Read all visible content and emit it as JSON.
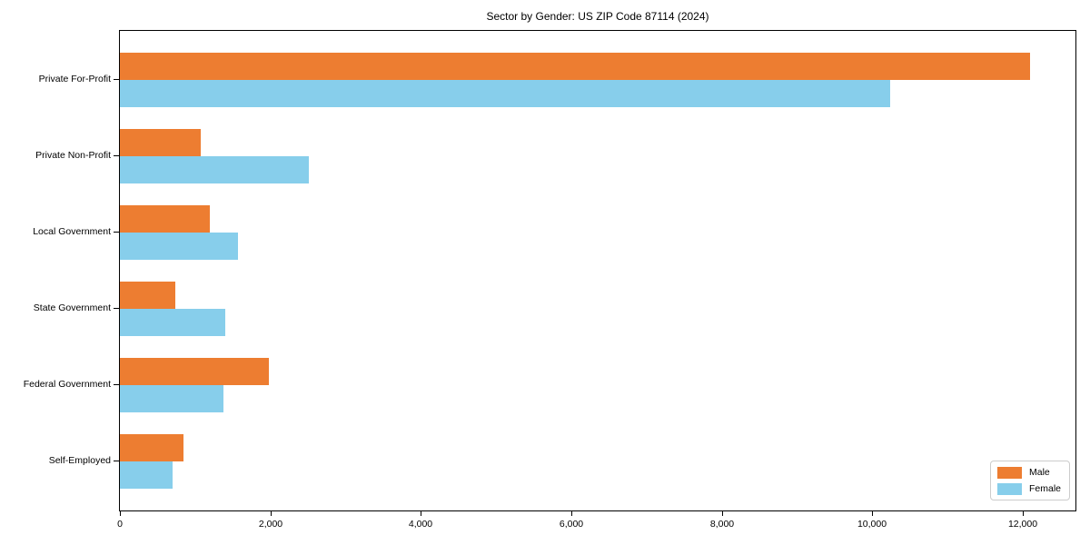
{
  "chart_data": {
    "type": "bar",
    "orientation": "horizontal",
    "title": "Sector by Gender: US ZIP Code 87114 (2024)",
    "categories": [
      "Private For-Profit",
      "Private Non-Profit",
      "Local Government",
      "State Government",
      "Federal Government",
      "Self-Employed"
    ],
    "series": [
      {
        "name": "Male",
        "color": "#ed7d31",
        "values": [
          12100,
          1080,
          1200,
          740,
          1980,
          850
        ]
      },
      {
        "name": "Female",
        "color": "#87ceeb",
        "values": [
          10240,
          2510,
          1570,
          1400,
          1380,
          700
        ]
      }
    ],
    "xlabel": "",
    "ylabel": "",
    "xlim": [
      0,
      12700
    ],
    "xticks": [
      {
        "value": 0,
        "label": "0"
      },
      {
        "value": 2000,
        "label": "2,000"
      },
      {
        "value": 4000,
        "label": "4,000"
      },
      {
        "value": 6000,
        "label": "6,000"
      },
      {
        "value": 8000,
        "label": "8,000"
      },
      {
        "value": 10000,
        "label": "10,000"
      },
      {
        "value": 12000,
        "label": "12,000"
      }
    ],
    "grid": false,
    "legend": {
      "position": "lower right",
      "entries": [
        "Male",
        "Female"
      ]
    }
  }
}
